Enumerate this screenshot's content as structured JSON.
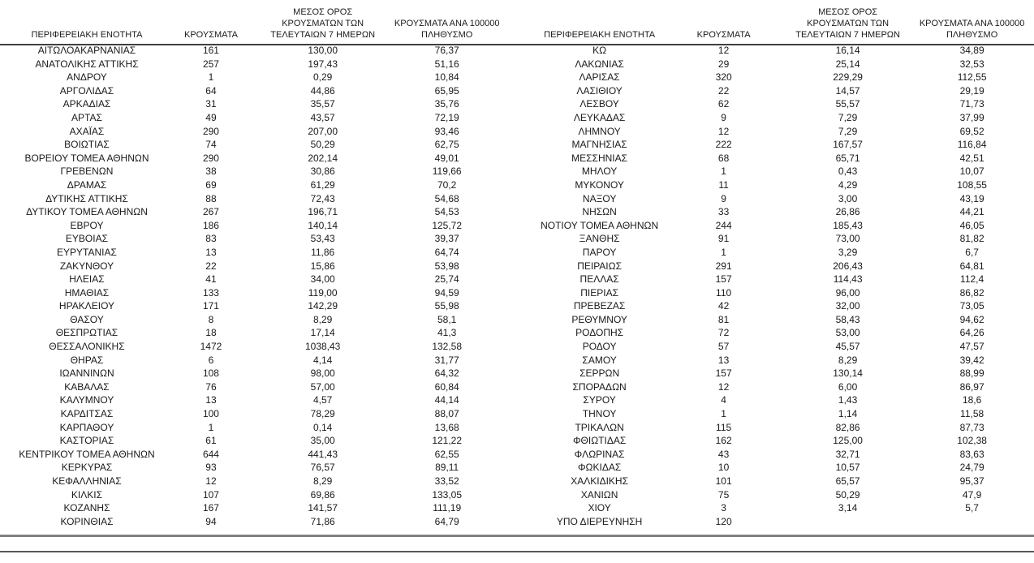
{
  "document": {
    "background": "#ffffff",
    "text_color": "#1a1a1a",
    "header_rule_color": "#404040",
    "bottom_thick_rule_color": "#7f7f7f",
    "bottom_thin_rule_color": "#595959"
  },
  "table_headers": {
    "region": "ΠΕΡΙΦΕΡΕΙΑΚΗ ΕΝΟΤΗΤΑ",
    "cases": "ΚΡΟΥΣΜΑΤΑ",
    "avg_7day": "ΜΕΣΟΣ ΟΡΟΣ\nΚΡΟΥΣΜΑΤΩΝ ΤΩΝ\nΤΕΛΕΥΤΑΙΩΝ 7 ΗΜΕΡΩΝ",
    "per_100k": "ΚΡΟΥΣΜΑΤΑ ΑΝΑ 100000\nΠΛΗΘΥΣΜΟ"
  },
  "left_table_rows": [
    [
      "ΑΙΤΩΛΟΑΚΑΡΝΑΝΙΑΣ",
      "161",
      "130,00",
      "76,37"
    ],
    [
      "ΑΝΑΤΟΛΙΚΗΣ ΑΤΤΙΚΗΣ",
      "257",
      "197,43",
      "51,16"
    ],
    [
      "ΑΝΔΡΟΥ",
      "1",
      "0,29",
      "10,84"
    ],
    [
      "ΑΡΓΟΛΙΔΑΣ",
      "64",
      "44,86",
      "65,95"
    ],
    [
      "ΑΡΚΑΔΙΑΣ",
      "31",
      "35,57",
      "35,76"
    ],
    [
      "ΑΡΤΑΣ",
      "49",
      "43,57",
      "72,19"
    ],
    [
      "ΑΧΑΪΑΣ",
      "290",
      "207,00",
      "93,46"
    ],
    [
      "ΒΟΙΩΤΙΑΣ",
      "74",
      "50,29",
      "62,75"
    ],
    [
      "ΒΟΡΕΙΟΥ ΤΟΜΕΑ ΑΘΗΝΩΝ",
      "290",
      "202,14",
      "49,01"
    ],
    [
      "ΓΡΕΒΕΝΩΝ",
      "38",
      "30,86",
      "119,66"
    ],
    [
      "ΔΡΑΜΑΣ",
      "69",
      "61,29",
      "70,2"
    ],
    [
      "ΔΥΤΙΚΗΣ ΑΤΤΙΚΗΣ",
      "88",
      "72,43",
      "54,68"
    ],
    [
      "ΔΥΤΙΚΟΥ ΤΟΜΕΑ ΑΘΗΝΩΝ",
      "267",
      "196,71",
      "54,53"
    ],
    [
      "ΕΒΡΟΥ",
      "186",
      "140,14",
      "125,72"
    ],
    [
      "ΕΥΒΟΙΑΣ",
      "83",
      "53,43",
      "39,37"
    ],
    [
      "ΕΥΡΥΤΑΝΙΑΣ",
      "13",
      "11,86",
      "64,74"
    ],
    [
      "ΖΑΚΥΝΘΟΥ",
      "22",
      "15,86",
      "53,98"
    ],
    [
      "ΗΛΕΙΑΣ",
      "41",
      "34,00",
      "25,74"
    ],
    [
      "ΗΜΑΘΙΑΣ",
      "133",
      "119,00",
      "94,59"
    ],
    [
      "ΗΡΑΚΛΕΙΟΥ",
      "171",
      "142,29",
      "55,98"
    ],
    [
      "ΘΑΣΟΥ",
      "8",
      "8,29",
      "58,1"
    ],
    [
      "ΘΕΣΠΡΩΤΙΑΣ",
      "18",
      "17,14",
      "41,3"
    ],
    [
      "ΘΕΣΣΑΛΟΝΙΚΗΣ",
      "1472",
      "1038,43",
      "132,58"
    ],
    [
      "ΘΗΡΑΣ",
      "6",
      "4,14",
      "31,77"
    ],
    [
      "ΙΩΑΝΝΙΝΩΝ",
      "108",
      "98,00",
      "64,32"
    ],
    [
      "ΚΑΒΑΛΑΣ",
      "76",
      "57,00",
      "60,84"
    ],
    [
      "ΚΑΛΥΜΝΟΥ",
      "13",
      "4,57",
      "44,14"
    ],
    [
      "ΚΑΡΔΙΤΣΑΣ",
      "100",
      "78,29",
      "88,07"
    ],
    [
      "ΚΑΡΠΑΘΟΥ",
      "1",
      "0,14",
      "13,68"
    ],
    [
      "ΚΑΣΤΟΡΙΑΣ",
      "61",
      "35,00",
      "121,22"
    ],
    [
      "ΚΕΝΤΡΙΚΟΥ ΤΟΜΕΑ ΑΘΗΝΩΝ",
      "644",
      "441,43",
      "62,55"
    ],
    [
      "ΚΕΡΚΥΡΑΣ",
      "93",
      "76,57",
      "89,11"
    ],
    [
      "ΚΕΦΑΛΛΗΝΙΑΣ",
      "12",
      "8,29",
      "33,52"
    ],
    [
      "ΚΙΛΚΙΣ",
      "107",
      "69,86",
      "133,05"
    ],
    [
      "ΚΟΖΑΝΗΣ",
      "167",
      "141,57",
      "111,19"
    ],
    [
      "ΚΟΡΙΝΘΙΑΣ",
      "94",
      "71,86",
      "64,79"
    ]
  ],
  "right_table_rows": [
    [
      "ΚΩ",
      "12",
      "16,14",
      "34,89"
    ],
    [
      "ΛΑΚΩΝΙΑΣ",
      "29",
      "25,14",
      "32,53"
    ],
    [
      "ΛΑΡΙΣΑΣ",
      "320",
      "229,29",
      "112,55"
    ],
    [
      "ΛΑΣΙΘΙΟΥ",
      "22",
      "14,57",
      "29,19"
    ],
    [
      "ΛΕΣΒΟΥ",
      "62",
      "55,57",
      "71,73"
    ],
    [
      "ΛΕΥΚΑΔΑΣ",
      "9",
      "7,29",
      "37,99"
    ],
    [
      "ΛΗΜΝΟΥ",
      "12",
      "7,29",
      "69,52"
    ],
    [
      "ΜΑΓΝΗΣΙΑΣ",
      "222",
      "167,57",
      "116,84"
    ],
    [
      "ΜΕΣΣΗΝΙΑΣ",
      "68",
      "65,71",
      "42,51"
    ],
    [
      "ΜΗΛΟΥ",
      "1",
      "0,43",
      "10,07"
    ],
    [
      "ΜΥΚΟΝΟΥ",
      "11",
      "4,29",
      "108,55"
    ],
    [
      "ΝΑΞΟΥ",
      "9",
      "3,00",
      "43,19"
    ],
    [
      "ΝΗΣΩΝ",
      "33",
      "26,86",
      "44,21"
    ],
    [
      "ΝΟΤΙΟΥ ΤΟΜΕΑ ΑΘΗΝΩΝ",
      "244",
      "185,43",
      "46,05"
    ],
    [
      "ΞΑΝΘΗΣ",
      "91",
      "73,00",
      "81,82"
    ],
    [
      "ΠΑΡΟΥ",
      "1",
      "3,29",
      "6,7"
    ],
    [
      "ΠΕΙΡΑΙΩΣ",
      "291",
      "206,43",
      "64,81"
    ],
    [
      "ΠΕΛΛΑΣ",
      "157",
      "114,43",
      "112,4"
    ],
    [
      "ΠΙΕΡΙΑΣ",
      "110",
      "96,00",
      "86,82"
    ],
    [
      "ΠΡΕΒΕΖΑΣ",
      "42",
      "32,00",
      "73,05"
    ],
    [
      "ΡΕΘΥΜΝΟΥ",
      "81",
      "58,43",
      "94,62"
    ],
    [
      "ΡΟΔΟΠΗΣ",
      "72",
      "53,00",
      "64,26"
    ],
    [
      "ΡΟΔΟΥ",
      "57",
      "45,57",
      "47,57"
    ],
    [
      "ΣΑΜΟΥ",
      "13",
      "8,29",
      "39,42"
    ],
    [
      "ΣΕΡΡΩΝ",
      "157",
      "130,14",
      "88,99"
    ],
    [
      "ΣΠΟΡΑΔΩΝ",
      "12",
      "6,00",
      "86,97"
    ],
    [
      "ΣΥΡΟΥ",
      "4",
      "1,43",
      "18,6"
    ],
    [
      "ΤΗΝΟΥ",
      "1",
      "1,14",
      "11,58"
    ],
    [
      "ΤΡΙΚΑΛΩΝ",
      "115",
      "82,86",
      "87,73"
    ],
    [
      "ΦΘΙΩΤΙΔΑΣ",
      "162",
      "125,00",
      "102,38"
    ],
    [
      "ΦΛΩΡΙΝΑΣ",
      "43",
      "32,71",
      "83,63"
    ],
    [
      "ΦΩΚΙΔΑΣ",
      "10",
      "10,57",
      "24,79"
    ],
    [
      "ΧΑΛΚΙΔΙΚΗΣ",
      "101",
      "65,57",
      "95,37"
    ],
    [
      "ΧΑΝΙΩΝ",
      "75",
      "50,29",
      "47,9"
    ],
    [
      "ΧΙΟΥ",
      "3",
      "3,14",
      "5,7"
    ],
    [
      "ΥΠΟ ΔΙΕΡΕΥΝΗΣΗ",
      "120",
      "",
      ""
    ]
  ]
}
